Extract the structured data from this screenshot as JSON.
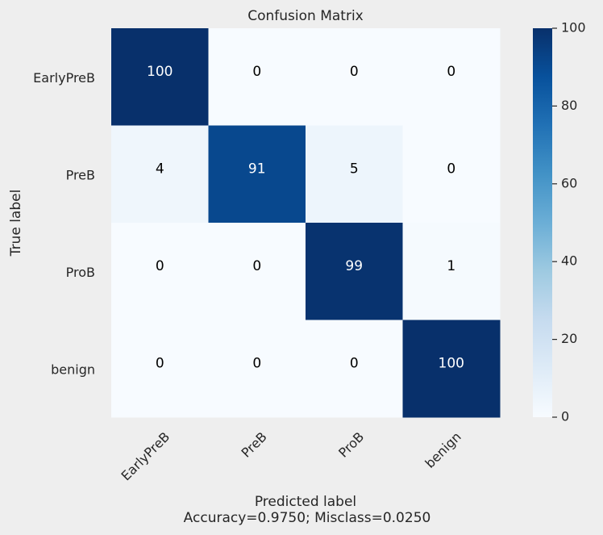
{
  "chart_data": {
    "type": "heatmap",
    "title": "Confusion Matrix",
    "x_categories": [
      "EarlyPreB",
      "PreB",
      "ProB",
      "benign"
    ],
    "y_categories": [
      "EarlyPreB",
      "PreB",
      "ProB",
      "benign"
    ],
    "values": [
      [
        100,
        0,
        0,
        0
      ],
      [
        4,
        91,
        5,
        0
      ],
      [
        0,
        0,
        99,
        1
      ],
      [
        0,
        0,
        0,
        100
      ]
    ],
    "xlabel": "Predicted label",
    "xlabel_note": "Accuracy=0.9750; Misclass=0.0250",
    "ylabel": "True label",
    "colormap": "Blues",
    "color_range": [
      0,
      100
    ],
    "colorbar_ticks": [
      0,
      20,
      40,
      60,
      80,
      100
    ],
    "grid": false
  },
  "colors": {
    "background": "#eeeeee",
    "text": "#262626",
    "cell_text_light": "#ffffff",
    "cell_text_dark": "#000000"
  }
}
